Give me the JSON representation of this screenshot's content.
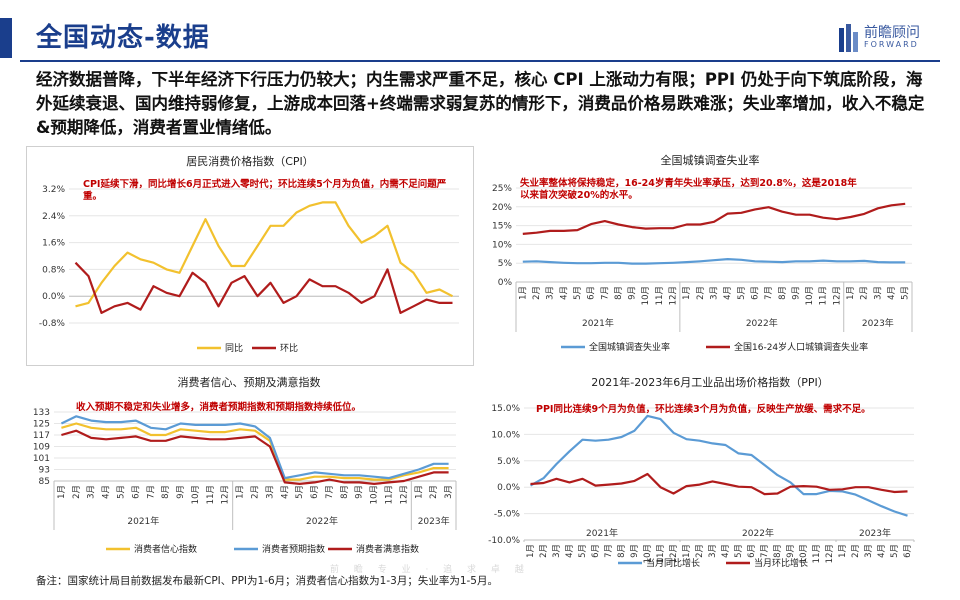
{
  "header": {
    "title": "全国动态-数据",
    "logo_cn": "前瞻顾问",
    "logo_en": "FORWARD"
  },
  "summary": "经济数据普降，下半年经济下行压力仍较大；内生需求严重不足，核心 CPI 上涨动力有限；PPI 仍处于向下筑底阶段，海外延续衰退、国内维持弱修复，上游成本回落+终端需求弱复苏的情形下，消费品价格易跌难涨；失业率增加，收入不稳定&预期降低，消费者置业情绪低。",
  "footnote": "备注：国家统计局目前数据发布最新CPI、PPI为1-6月；消费者信心指数为1-3月；失业率为1-5月。",
  "watermark": "前 瞻 专 业 · 追 求 卓 越",
  "colors": {
    "brand": "#1a3e8c",
    "yellow": "#f2c12e",
    "darkred": "#b01c1c",
    "blue": "#5b9bd5",
    "annotation": "#c00000"
  },
  "chart_data": [
    {
      "id": "cpi",
      "type": "line",
      "title": "居民消费价格指数（CPI）",
      "annotation": "CPI延续下滑，同比增长6月正式进入零时代；环比连续5个月为负值，内需不足问题严重。",
      "y_ticks": [
        "3.2%",
        "2.4%",
        "1.6%",
        "0.8%",
        "0.0%",
        "-0.8%"
      ],
      "ylim": [
        -0.8,
        3.2
      ],
      "series": [
        {
          "name": "同比",
          "color": "#f2c12e",
          "values": [
            -0.3,
            -0.2,
            0.4,
            0.9,
            1.3,
            1.1,
            1.0,
            0.8,
            0.7,
            1.5,
            2.3,
            1.5,
            0.9,
            0.9,
            1.5,
            2.1,
            2.1,
            2.5,
            2.7,
            2.8,
            2.8,
            2.1,
            1.6,
            1.8,
            2.1,
            1.0,
            0.7,
            0.1,
            0.2,
            0.0
          ]
        },
        {
          "name": "环比",
          "color": "#b01c1c",
          "values": [
            1.0,
            0.6,
            -0.5,
            -0.3,
            -0.2,
            -0.4,
            0.3,
            0.1,
            0.0,
            0.7,
            0.4,
            -0.3,
            0.4,
            0.6,
            0.0,
            0.4,
            -0.2,
            0.0,
            0.5,
            0.3,
            0.3,
            0.1,
            -0.2,
            0.0,
            0.8,
            -0.5,
            -0.3,
            -0.1,
            -0.2,
            -0.2
          ]
        }
      ]
    },
    {
      "id": "unemployment",
      "type": "line",
      "title": "全国城镇调查失业率",
      "annotation": "失业率整体将保持稳定，16-24岁青年失业率承压，达到20.8%，这是2018年以来首次突破20%的水平。",
      "y_ticks": [
        "25%",
        "20%",
        "15%",
        "10%",
        "5%",
        "0%"
      ],
      "ylim": [
        0,
        25
      ],
      "x_labels": [
        "1月",
        "2月",
        "3月",
        "4月",
        "5月",
        "6月",
        "7月",
        "8月",
        "9月",
        "10月",
        "11月",
        "12月",
        "1月",
        "2月",
        "3月",
        "4月",
        "5月",
        "6月",
        "7月",
        "8月",
        "9月",
        "10月",
        "11月",
        "12月",
        "1月",
        "2月",
        "3月",
        "4月",
        "5月"
      ],
      "year_labels": [
        "2021年",
        "2022年",
        "2023年"
      ],
      "series": [
        {
          "name": "全国城镇调查失业率",
          "color": "#5b9bd5",
          "values": [
            5.4,
            5.5,
            5.3,
            5.1,
            5.0,
            5.0,
            5.1,
            5.1,
            4.9,
            4.9,
            5.0,
            5.1,
            5.3,
            5.5,
            5.8,
            6.1,
            5.9,
            5.5,
            5.4,
            5.3,
            5.5,
            5.5,
            5.7,
            5.5,
            5.5,
            5.6,
            5.3,
            5.2,
            5.2
          ]
        },
        {
          "name": "全国16-24岁人口城镇调查失业率",
          "color": "#b01c1c",
          "values": [
            12.8,
            13.1,
            13.6,
            13.6,
            13.8,
            15.4,
            16.2,
            15.3,
            14.6,
            14.2,
            14.3,
            14.3,
            15.3,
            15.3,
            16.0,
            18.2,
            18.4,
            19.3,
            19.9,
            18.7,
            17.9,
            17.9,
            17.1,
            16.7,
            17.3,
            18.1,
            19.6,
            20.4,
            20.8
          ]
        }
      ]
    },
    {
      "id": "consumer",
      "type": "line",
      "title": "消费者信心、预期及满意指数",
      "annotation": "收入预期不稳定和失业增多，消费者预期指数和预期指数持续低位。",
      "y_ticks": [
        "133",
        "125",
        "117",
        "109",
        "101",
        "93",
        "85"
      ],
      "ylim": [
        85,
        133
      ],
      "x_labels": [
        "1月",
        "2月",
        "3月",
        "4月",
        "5月",
        "6月",
        "7月",
        "8月",
        "9月",
        "10月",
        "11月",
        "12月",
        "1月",
        "2月",
        "3月",
        "4月",
        "5月",
        "6月",
        "7月",
        "8月",
        "9月",
        "10月",
        "11月",
        "12月",
        "1月",
        "2月",
        "3月"
      ],
      "year_labels": [
        "2021年",
        "2022年",
        "2023年"
      ],
      "series": [
        {
          "name": "消费者信心指数",
          "color": "#f2c12e",
          "values": [
            122,
            125,
            122,
            121,
            121,
            122,
            117,
            117,
            121,
            120,
            119,
            119,
            121,
            120,
            113,
            86,
            86,
            88,
            88,
            87,
            87,
            86,
            86,
            89,
            91,
            94,
            94
          ]
        },
        {
          "name": "消费者预期指数",
          "color": "#5b9bd5",
          "values": [
            125,
            130,
            127,
            126,
            126,
            127,
            122,
            121,
            125,
            124,
            124,
            124,
            125,
            123,
            115,
            87,
            89,
            91,
            90,
            89,
            89,
            88,
            87,
            90,
            93,
            97,
            97
          ]
        },
        {
          "name": "消费者满意指数",
          "color": "#b01c1c",
          "values": [
            117,
            120,
            115,
            114,
            115,
            116,
            113,
            113,
            116,
            115,
            114,
            114,
            115,
            116,
            109,
            84,
            83,
            84,
            86,
            84,
            84,
            83,
            84,
            85,
            88,
            91,
            91
          ]
        }
      ]
    },
    {
      "id": "ppi",
      "type": "line",
      "title": "2021年-2023年6月工业品出场价格指数（PPI）",
      "annotation": "PPI同比连续9个月为负值，环比连续3个月为负值，反映生产放缓、需求不足。",
      "y_ticks": [
        "15.0%",
        "10.0%",
        "5.0%",
        "0.0%",
        "-5.0%",
        "-10.0%"
      ],
      "ylim": [
        -10,
        15
      ],
      "x_labels": [
        "1月",
        "2月",
        "3月",
        "4月",
        "5月",
        "6月",
        "7月",
        "8月",
        "9月",
        "10月",
        "11月",
        "12月",
        "1月",
        "2月",
        "3月",
        "4月",
        "5月",
        "6月",
        "7月",
        "8月",
        "9月",
        "10月",
        "11月",
        "12月",
        "1月",
        "2月",
        "3月",
        "4月",
        "5月",
        "6月"
      ],
      "year_labels": [
        "2021年",
        "2022年",
        "2023年"
      ],
      "series": [
        {
          "name": "当月同比增长",
          "color": "#5b9bd5",
          "values": [
            0.3,
            1.7,
            4.4,
            6.8,
            9.0,
            8.8,
            9.0,
            9.5,
            10.7,
            13.5,
            12.9,
            10.3,
            9.1,
            8.8,
            8.3,
            8.0,
            6.4,
            6.1,
            4.2,
            2.3,
            0.9,
            -1.3,
            -1.3,
            -0.7,
            -0.8,
            -1.4,
            -2.5,
            -3.6,
            -4.6,
            -5.4
          ]
        },
        {
          "name": "当月环比增长",
          "color": "#b01c1c",
          "values": [
            0.6,
            0.8,
            1.6,
            0.9,
            1.6,
            0.3,
            0.5,
            0.7,
            1.2,
            2.5,
            0.0,
            -1.2,
            0.2,
            0.5,
            1.1,
            0.6,
            0.1,
            0.0,
            -1.3,
            -1.2,
            0.1,
            0.2,
            0.1,
            -0.5,
            -0.4,
            0.0,
            0.0,
            -0.5,
            -0.9,
            -0.8
          ]
        }
      ]
    }
  ]
}
